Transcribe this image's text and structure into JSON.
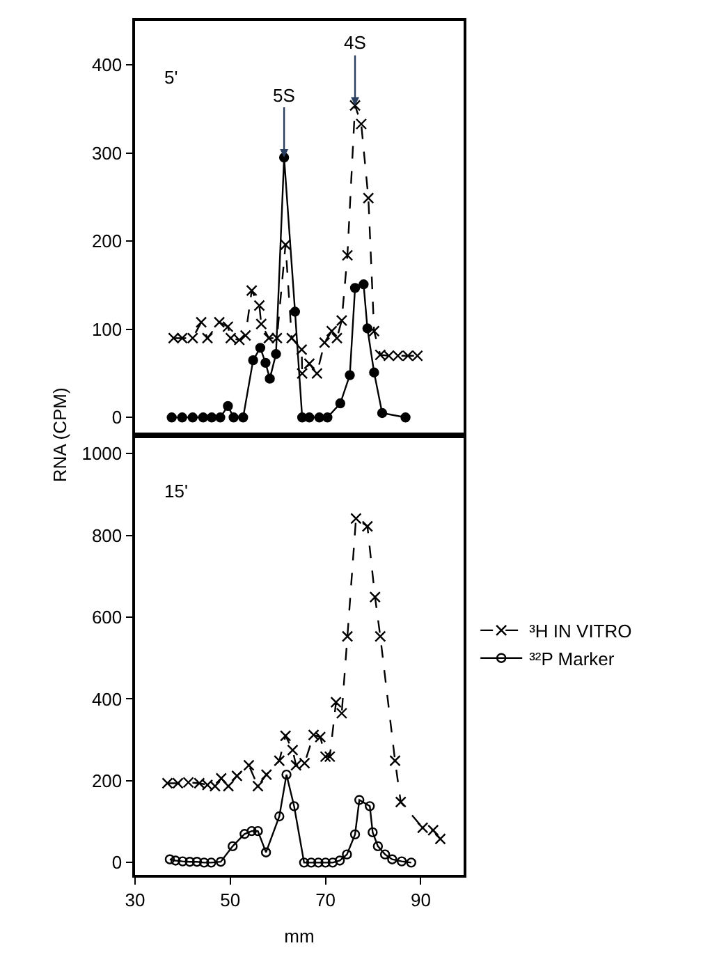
{
  "chart_data": [
    {
      "type": "line",
      "ylabel": "RNA (CPM)",
      "xlim": [
        30,
        99
      ],
      "ylim": [
        -20,
        450
      ],
      "yticks": [
        0,
        100,
        200,
        300,
        400
      ],
      "tick_labels": "y",
      "grid": false,
      "legend": false,
      "annotations": [
        "5'",
        {
          "text": "5S",
          "x": 61.3,
          "y": 295
        },
        {
          "text": "4S",
          "x": 76.2,
          "y": 354
        }
      ],
      "series": [
        {
          "color": "#000000",
          "marker": "cross",
          "line_style": "dashed",
          "x": [
            38.1,
            39.9,
            42.1,
            43.9,
            45.2,
            47.7,
            49.5,
            50.1,
            51.9,
            53.2,
            54.5,
            56.1,
            56.5,
            58.1,
            59.8,
            61.6,
            62.9,
            65.0,
            65.1,
            66.6,
            68.2,
            69.8,
            71.3,
            72.4,
            73.4,
            74.6,
            76.2,
            77.5,
            79.0,
            80.2,
            81.5,
            83.3,
            85.2,
            87.3,
            89.3
          ],
          "values": [
            90,
            90,
            90,
            108,
            90,
            108,
            103,
            90,
            88,
            93,
            144,
            127,
            106,
            90,
            90,
            196,
            90,
            77,
            50,
            61,
            50,
            85,
            98,
            90,
            110,
            184,
            354,
            333,
            249,
            98,
            71,
            70,
            70,
            70,
            70
          ]
        },
        {
          "color": "#000000",
          "marker": "circle",
          "line_style": "solid",
          "x": [
            37.7,
            39.9,
            42.1,
            44.3,
            46.1,
            47.9,
            49.5,
            50.7,
            52.7,
            54.8,
            56.3,
            57.4,
            58.3,
            59.6,
            61.3,
            63.6,
            65.1,
            66.6,
            68.7,
            70.4,
            73.1,
            75.1,
            76.2,
            78.0,
            78.8,
            80.2,
            81.9,
            86.8
          ],
          "values": [
            0,
            0,
            0,
            0,
            0,
            0,
            13,
            0,
            0,
            65,
            79,
            62,
            44,
            72,
            295,
            120,
            0,
            0,
            0,
            0,
            16,
            48,
            147,
            151,
            101,
            51,
            5,
            0
          ]
        }
      ]
    },
    {
      "type": "line",
      "xlabel": "mm",
      "xlim": [
        30,
        99
      ],
      "xticks": [
        30,
        50,
        70,
        90
      ],
      "ylim": [
        -30,
        1045
      ],
      "yticks": [
        0,
        200,
        400,
        600,
        800,
        1000
      ],
      "grid": false,
      "legend": "right",
      "annotations": [
        "15'"
      ],
      "series": [
        {
          "name": "³H IN VITRO",
          "color": "#000000",
          "marker": "cross",
          "line_style": "dashed",
          "x": [
            36.8,
            39.0,
            41.2,
            43.5,
            45.2,
            46.8,
            48.1,
            49.6,
            51.4,
            53.9,
            55.8,
            57.6,
            60.3,
            61.6,
            63.1,
            63.8,
            65.6,
            67.5,
            68.9,
            70.0,
            70.9,
            72.2,
            73.4,
            74.6,
            76.4,
            78.8,
            80.4,
            81.5,
            84.6,
            85.8,
            90.4,
            92.6,
            94.1
          ],
          "values": [
            194,
            194,
            196,
            194,
            190,
            187,
            206,
            187,
            212,
            238,
            187,
            215,
            249,
            310,
            275,
            238,
            243,
            312,
            307,
            259,
            259,
            392,
            365,
            553,
            841,
            822,
            649,
            553,
            249,
            148,
            85,
            79,
            58
          ]
        },
        {
          "name": "³²P Marker",
          "color": "#000000",
          "marker": "circle",
          "line_style": "solid",
          "x": [
            37.3,
            38.5,
            40,
            41.5,
            43,
            44.5,
            46,
            48,
            50.5,
            53,
            54.5,
            55.8,
            57.5,
            60.3,
            61.8,
            63.4,
            65.5,
            67,
            68.5,
            70,
            71.5,
            73,
            74.5,
            76.2,
            77.1,
            79.3,
            79.9,
            81,
            82.5,
            84,
            86,
            88
          ],
          "values": [
            8,
            5,
            3,
            2,
            2,
            0,
            0,
            2,
            40,
            70,
            77,
            77,
            25,
            113,
            215,
            138,
            0,
            0,
            0,
            0,
            0,
            5,
            20,
            69,
            153,
            138,
            74,
            40,
            20,
            8,
            3,
            0
          ]
        }
      ]
    }
  ]
}
